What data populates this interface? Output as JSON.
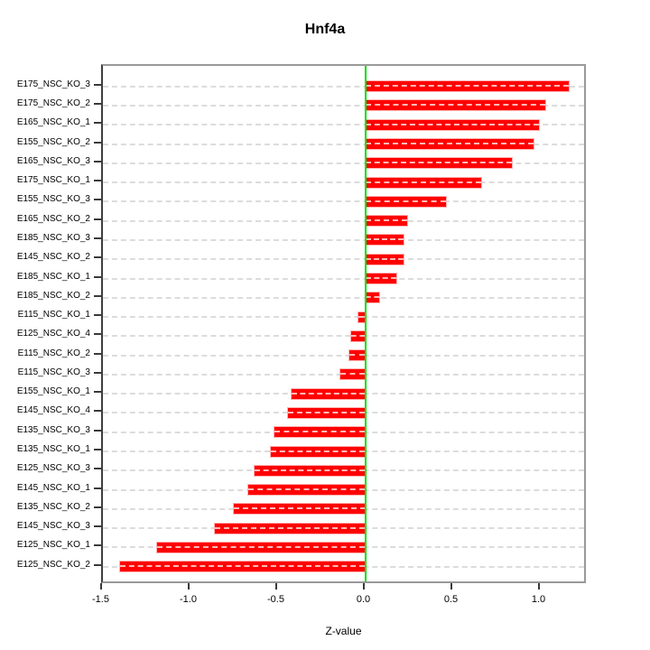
{
  "title": "Hnf4a",
  "chart_data": {
    "type": "bar",
    "orientation": "horizontal",
    "title": "Hnf4a",
    "xlabel": "Z-value",
    "ylabel": "",
    "categories": [
      "E175_NSC_KO_3",
      "E175_NSC_KO_2",
      "E165_NSC_KO_1",
      "E155_NSC_KO_2",
      "E165_NSC_KO_3",
      "E175_NSC_KO_1",
      "E155_NSC_KO_3",
      "E165_NSC_KO_2",
      "E185_NSC_KO_3",
      "E145_NSC_KO_2",
      "E185_NSC_KO_1",
      "E185_NSC_KO_2",
      "E115_NSC_KO_1",
      "E125_NSC_KO_4",
      "E115_NSC_KO_2",
      "E115_NSC_KO_3",
      "E155_NSC_KO_1",
      "E145_NSC_KO_4",
      "E135_NSC_KO_3",
      "E135_NSC_KO_1",
      "E125_NSC_KO_3",
      "E145_NSC_KO_1",
      "E135_NSC_KO_2",
      "E145_NSC_KO_3",
      "E125_NSC_KO_1",
      "E125_NSC_KO_2"
    ],
    "values": [
      1.16,
      1.03,
      0.99,
      0.96,
      0.84,
      0.66,
      0.46,
      0.24,
      0.22,
      0.22,
      0.18,
      0.08,
      -0.04,
      -0.08,
      -0.09,
      -0.14,
      -0.42,
      -0.44,
      -0.52,
      -0.54,
      -0.63,
      -0.67,
      -0.75,
      -0.86,
      -1.19,
      -1.4
    ],
    "x_ticks": [
      -1.5,
      -1.0,
      -0.5,
      0.0,
      0.5,
      1.0
    ],
    "x_tick_labels": [
      "-1.5",
      "-1.0",
      "-0.5",
      "0.0",
      "0.5",
      "1.0"
    ],
    "xlim": [
      -1.5,
      1.27
    ],
    "grid": true,
    "legend": "none",
    "colors": {
      "bar": "#ff0000",
      "bar_edge": "#ffb0b0",
      "zero_line": "#00dd00",
      "grid_line": "#dcdcdc",
      "box": "#999999",
      "text": "#000000"
    }
  }
}
